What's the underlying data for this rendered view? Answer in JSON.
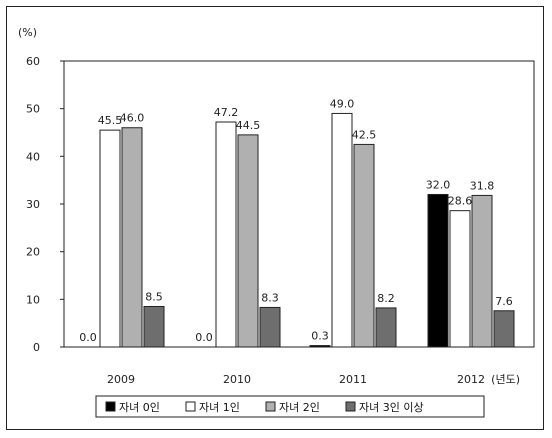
{
  "chart_data": {
    "type": "bar",
    "unit_label": "(%)",
    "categories": [
      "2009",
      "2010",
      "2011",
      "2012"
    ],
    "x_suffix": "(년도)",
    "ylim": [
      0,
      60
    ],
    "yticks": [
      0,
      10,
      20,
      30,
      40,
      50,
      60
    ],
    "grid": false,
    "legend_position": "bottom",
    "series": [
      {
        "name": "자녀 0인",
        "color": "#000000",
        "values": [
          0.0,
          0.0,
          0.3,
          32.0
        ],
        "labels": [
          "0.0",
          "0.0",
          "0.3",
          "32.0"
        ]
      },
      {
        "name": "자녀 1인",
        "color": "#ffffff",
        "values": [
          45.5,
          47.2,
          49.0,
          28.6
        ],
        "labels": [
          "45.5",
          "47.2",
          "49.0",
          "28.6"
        ]
      },
      {
        "name": "자녀 2인",
        "color": "#b0b0b0",
        "values": [
          46.0,
          44.5,
          42.5,
          31.8
        ],
        "labels": [
          "46.0",
          "44.5",
          "42.5",
          "31.8"
        ]
      },
      {
        "name": "자녀 3인 이상",
        "color": "#6e6e6e",
        "values": [
          8.5,
          8.3,
          8.2,
          7.6
        ],
        "labels": [
          "8.5",
          "8.3",
          "8.2",
          "7.6"
        ]
      }
    ]
  }
}
